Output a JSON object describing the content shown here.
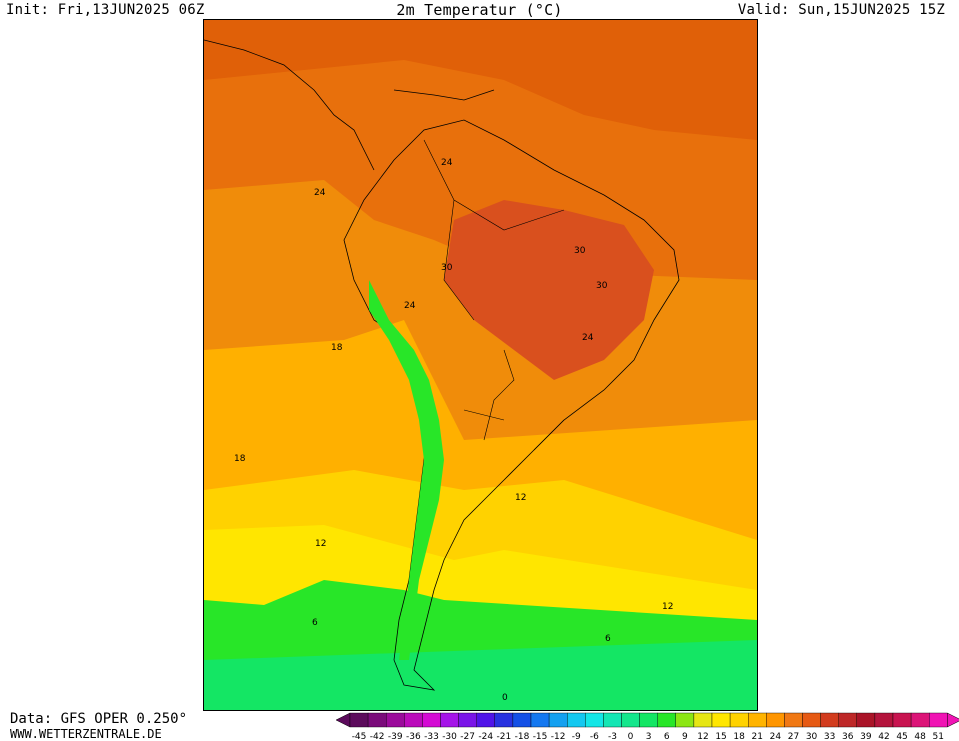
{
  "header": {
    "init": "Init: Fri,13JUN2025 06Z",
    "title": "2m Temperatur (°C)",
    "valid": "Valid: Sun,15JUN2025 15Z"
  },
  "footer": {
    "data_source": "Data: GFS OPER 0.250°",
    "website": "WWW.WETTERZENTRALE.DE"
  },
  "map": {
    "contour_labels": [
      "24",
      "24",
      "24",
      "30",
      "30",
      "30",
      "24",
      "18",
      "18",
      "12",
      "12",
      "12",
      "6",
      "6",
      "0"
    ]
  },
  "legend": {
    "labels": [
      "-45",
      "-42",
      "-39",
      "-36",
      "-33",
      "-30",
      "-27",
      "-24",
      "-21",
      "-18",
      "-15",
      "-12",
      "-9",
      "-6",
      "-3",
      "0",
      "3",
      "6",
      "9",
      "12",
      "15",
      "18",
      "21",
      "24",
      "27",
      "30",
      "33",
      "36",
      "39",
      "42",
      "45",
      "48",
      "51"
    ],
    "colors": [
      "#5c0b5c",
      "#7a0a7a",
      "#9b0a9b",
      "#bb0abb",
      "#d40ad4",
      "#a514e8",
      "#7a14e8",
      "#5014e8",
      "#2832e0",
      "#1450e6",
      "#1478f0",
      "#14a0f0",
      "#14c8f0",
      "#14e6e6",
      "#14e6b4",
      "#14e68c",
      "#14e664",
      "#28e628",
      "#8ce614",
      "#e6e614",
      "#ffe600",
      "#ffd200",
      "#ffb400",
      "#ff9600",
      "#f07814",
      "#e65a14",
      "#d23c1e",
      "#be2828",
      "#aa1428",
      "#b4143c",
      "#c81450",
      "#dc1478",
      "#f014b4"
    ]
  }
}
